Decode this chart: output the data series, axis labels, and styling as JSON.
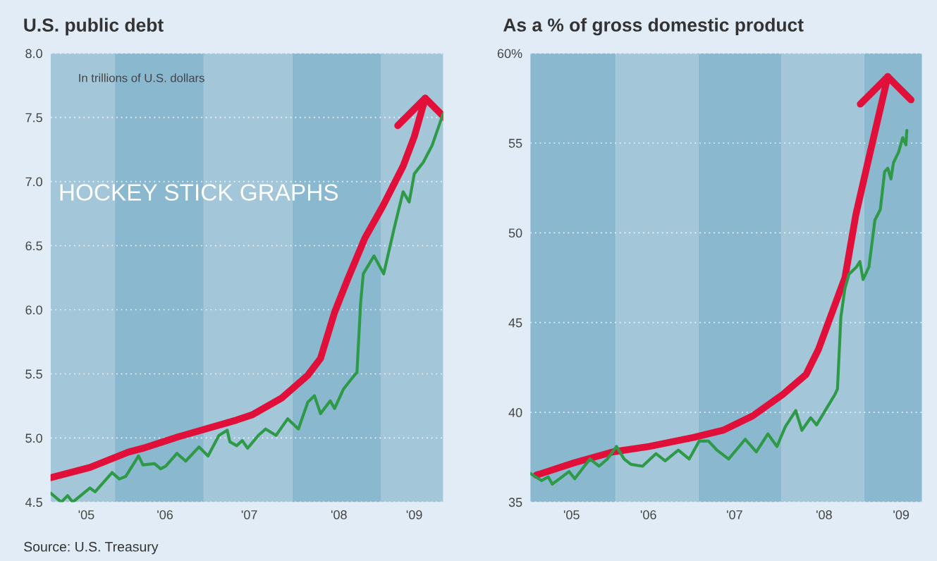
{
  "chart_data": [
    {
      "type": "line",
      "title": "U.S. public debt",
      "annotations": [
        "In trillions of U.S. dollars",
        "HOCKEY STICK GRAPHS",
        "Source: U.S. Treasury"
      ],
      "series": [
        {
          "color": "#2e9a48",
          "x": [
            "2005-04-11",
            "2005-05-25",
            "2005-06-20",
            "2005-07-11",
            "2005-09-20",
            "2005-10-11",
            "2005-12-20",
            "2006-01-19",
            "2006-02-14",
            "2006-04-08",
            "2006-04-26",
            "2006-06-13",
            "2006-07-08",
            "2006-07-29",
            "2006-09-13",
            "2006-10-19",
            "2006-12-13",
            "2007-01-19",
            "2007-03-05",
            "2007-04-08",
            "2007-04-19",
            "2007-05-17",
            "2007-06-09",
            "2007-07-01",
            "2007-08-14",
            "2007-09-13",
            "2007-10-26",
            "2007-12-13",
            "2008-01-26",
            "2008-03-05",
            "2008-04-01",
            "2008-04-26",
            "2008-06-05",
            "2008-06-23",
            "2008-07-29",
            "2008-09-13",
            "2008-09-23",
            "2008-10-08",
            "2008-10-19",
            "2008-11-07",
            "2008-12-02",
            "2009-01-11",
            "2009-02-25",
            "2009-04-01",
            "2009-04-26",
            "2009-05-17",
            "2009-06-23",
            "2009-07-29",
            "2009-09-13"
          ],
          "values": [
            4.57,
            4.5,
            4.55,
            4.5,
            4.61,
            4.58,
            4.73,
            4.68,
            4.7,
            4.86,
            4.79,
            4.8,
            4.76,
            4.78,
            4.88,
            4.82,
            4.93,
            4.86,
            5.02,
            5.06,
            4.97,
            4.94,
            4.98,
            4.92,
            5.02,
            5.07,
            5.02,
            5.15,
            5.07,
            5.28,
            5.33,
            5.19,
            5.29,
            5.23,
            5.38,
            5.49,
            5.51,
            6.05,
            6.28,
            6.34,
            6.42,
            6.28,
            6.65,
            6.92,
            6.84,
            7.06,
            7.15,
            7.28,
            7.53
          ]
        },
        {
          "color": "#e0103a",
          "x": [
            "2005-04-11",
            "2005-09-20",
            "2006-02-25",
            "2006-04-26",
            "2006-09-20",
            "2007-05-17",
            "2007-07-19",
            "2007-11-17",
            "2008-03-05",
            "2008-04-26",
            "2008-06-23",
            "2008-08-14",
            "2008-10-26",
            "2009-01-08",
            "2009-04-01",
            "2009-05-17",
            "2009-07-01"
          ],
          "values": [
            4.69,
            4.77,
            4.89,
            4.92,
            5.01,
            5.14,
            5.18,
            5.31,
            5.49,
            5.62,
            5.98,
            6.23,
            6.56,
            6.81,
            7.12,
            7.35,
            7.65
          ]
        }
      ],
      "xlim": [
        "2005-04-11",
        "2009-09-13"
      ],
      "xticks": [
        {
          "value": "2005-09-05",
          "label": "'05"
        },
        {
          "value": "2006-07-26",
          "label": "'06"
        },
        {
          "value": "2007-07-08",
          "label": "'07"
        },
        {
          "value": "2008-07-11",
          "label": "'08"
        },
        {
          "value": "2009-05-17",
          "label": "'09"
        }
      ],
      "ylim": [
        4.5,
        8.0
      ],
      "yticks": [
        {
          "value": 4.5,
          "label": "4.5"
        },
        {
          "value": 5.0,
          "label": "5.0"
        },
        {
          "value": 5.5,
          "label": "5.5"
        },
        {
          "value": 6.0,
          "label": "6.0"
        },
        {
          "value": 6.5,
          "label": "6.5"
        },
        {
          "value": 7.0,
          "label": "7.0"
        },
        {
          "value": 7.5,
          "label": "7.5"
        },
        {
          "value": 8.0,
          "label": "8.0"
        }
      ],
      "bands": [
        {
          "axis": "x",
          "from": "2005-04-11",
          "to": "2006-01-01",
          "color": "#a3c6d8"
        },
        {
          "axis": "x",
          "from": "2006-01-01",
          "to": "2007-01-01",
          "color": "#8ab8cf"
        },
        {
          "axis": "x",
          "from": "2007-01-01",
          "to": "2008-01-01",
          "color": "#a3c6d8"
        },
        {
          "axis": "x",
          "from": "2008-01-01",
          "to": "2009-01-01",
          "color": "#8ab8cf"
        },
        {
          "axis": "x",
          "from": "2009-01-01",
          "to": "2009-09-13",
          "color": "#a3c6d8"
        }
      ],
      "grid": "y",
      "line_style": "solid",
      "marker": "none"
    },
    {
      "type": "line",
      "title": "As a % of gross domestic product",
      "series": [
        {
          "color": "#2e9a48",
          "x": [
            "2004-12-20",
            "2005-02-07",
            "2005-03-09",
            "2005-03-27",
            "2005-06-09",
            "2005-07-04",
            "2005-09-09",
            "2005-10-19",
            "2005-11-25",
            "2006-01-04",
            "2006-02-07",
            "2006-03-09",
            "2006-04-29",
            "2006-06-27",
            "2006-08-07",
            "2006-10-04",
            "2006-11-21",
            "2007-01-04",
            "2007-02-14",
            "2007-03-23",
            "2007-05-14",
            "2007-07-26",
            "2007-09-13",
            "2007-11-03",
            "2007-12-13",
            "2008-01-19",
            "2008-03-05",
            "2008-04-01",
            "2008-05-10",
            "2008-06-05",
            "2008-07-08",
            "2008-08-25",
            "2008-09-05",
            "2008-09-20",
            "2008-10-08",
            "2008-10-26",
            "2008-11-28",
            "2008-12-13",
            "2008-12-27",
            "2009-01-22",
            "2009-02-17",
            "2009-03-13",
            "2009-04-01",
            "2009-04-15",
            "2009-04-29",
            "2009-05-10",
            "2009-06-02",
            "2009-06-20",
            "2009-07-04",
            "2009-07-08"
          ],
          "values": [
            36.6,
            36.2,
            36.4,
            36.0,
            36.7,
            36.3,
            37.4,
            37.0,
            37.4,
            38.1,
            37.4,
            37.1,
            37.0,
            37.7,
            37.3,
            37.9,
            37.4,
            38.4,
            38.4,
            37.9,
            37.4,
            38.5,
            37.8,
            38.8,
            38.1,
            39.2,
            40.1,
            39.0,
            39.7,
            39.3,
            40.0,
            41.0,
            41.3,
            45.3,
            46.9,
            47.7,
            48.1,
            48.4,
            47.4,
            48.1,
            50.7,
            51.3,
            53.4,
            53.6,
            53.0,
            53.9,
            54.5,
            55.3,
            54.9,
            55.7
          ]
        },
        {
          "color": "#e0103a",
          "x": [
            "2005-01-15",
            "2005-07-04",
            "2005-12-20",
            "2006-05-28",
            "2006-12-09",
            "2007-04-19",
            "2007-08-28",
            "2008-01-08",
            "2008-04-19",
            "2008-06-13",
            "2008-08-28",
            "2008-10-08",
            "2008-11-25",
            "2009-01-22",
            "2009-04-15"
          ],
          "values": [
            36.5,
            37.2,
            37.8,
            38.1,
            38.6,
            39.0,
            39.8,
            41.0,
            42.1,
            43.5,
            46.1,
            47.5,
            51.0,
            54.2,
            58.7
          ]
        }
      ],
      "xlim": [
        "2004-12-20",
        "2009-09-13"
      ],
      "xticks": [
        {
          "value": "2005-06-20",
          "label": "'05"
        },
        {
          "value": "2006-05-25",
          "label": "'06"
        },
        {
          "value": "2007-06-09",
          "label": "'07"
        },
        {
          "value": "2008-07-08",
          "label": "'08"
        },
        {
          "value": "2009-06-13",
          "label": "'09"
        }
      ],
      "ylim": [
        35,
        60
      ],
      "yticks": [
        35,
        40,
        45,
        50,
        55,
        {
          "value": 60,
          "label": "60%"
        }
      ],
      "bands": [
        {
          "axis": "x",
          "from": "2004-12-20",
          "to": "2006-01-01",
          "color": "#8ab8cf"
        },
        {
          "axis": "x",
          "from": "2006-01-01",
          "to": "2007-01-01",
          "color": "#a3c6d8"
        },
        {
          "axis": "x",
          "from": "2007-01-01",
          "to": "2008-01-01",
          "color": "#8ab8cf"
        },
        {
          "axis": "x",
          "from": "2008-01-01",
          "to": "2009-01-01",
          "color": "#a3c6d8"
        },
        {
          "axis": "x",
          "from": "2009-01-01",
          "to": "2009-09-13",
          "color": "#8ab8cf"
        }
      ],
      "grid": "y",
      "line_style": "solid",
      "marker": "none"
    }
  ]
}
